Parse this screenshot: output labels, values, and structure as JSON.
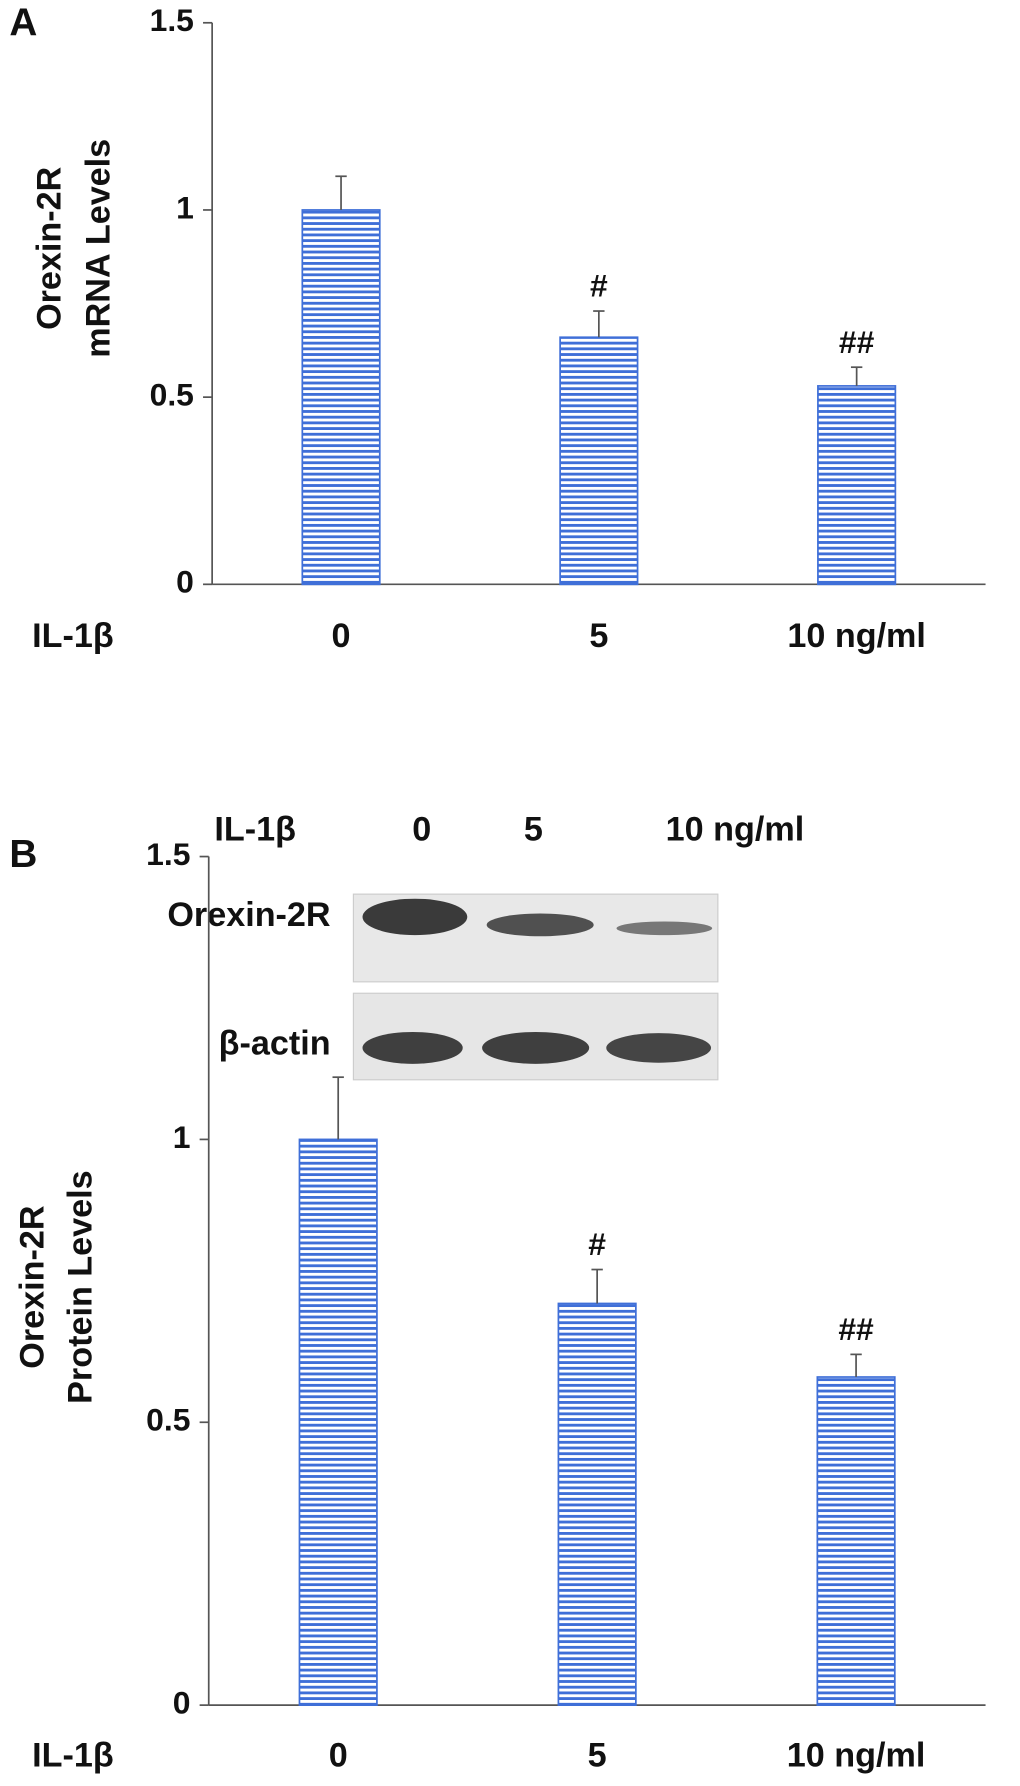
{
  "panel_labels": [
    "A",
    "B"
  ],
  "blot": {
    "treatment_label": "IL-1β",
    "lanes": [
      "0",
      "5",
      "10 ng/ml"
    ],
    "rows": [
      "Orexin-2R",
      "β-actin"
    ]
  },
  "chart_data": [
    {
      "type": "bar",
      "ylabel": [
        "Orexin-2R",
        "mRNA Levels"
      ],
      "xlabel": "IL-1β",
      "categories": [
        "0",
        "5",
        "10 ng/ml"
      ],
      "values": [
        1.0,
        0.66,
        0.53
      ],
      "errors": [
        0.09,
        0.07,
        0.05
      ],
      "annotations": [
        null,
        "#",
        "##"
      ],
      "color": "#3f6fd8",
      "ylim": [
        0,
        1.5
      ],
      "yticks": [
        0,
        0.5,
        1,
        1.5
      ]
    },
    {
      "type": "bar",
      "ylabel": [
        "Orexin-2R",
        "Protein Levels"
      ],
      "xlabel": "IL-1β",
      "categories": [
        "0",
        "5",
        "10 ng/ml"
      ],
      "values": [
        1.0,
        0.71,
        0.58
      ],
      "errors": [
        0.11,
        0.06,
        0.04
      ],
      "annotations": [
        null,
        "#",
        "##"
      ],
      "color": "#3f6fd8",
      "ylim": [
        0,
        1.5
      ],
      "yticks": [
        0,
        0.5,
        1,
        1.5
      ]
    }
  ]
}
